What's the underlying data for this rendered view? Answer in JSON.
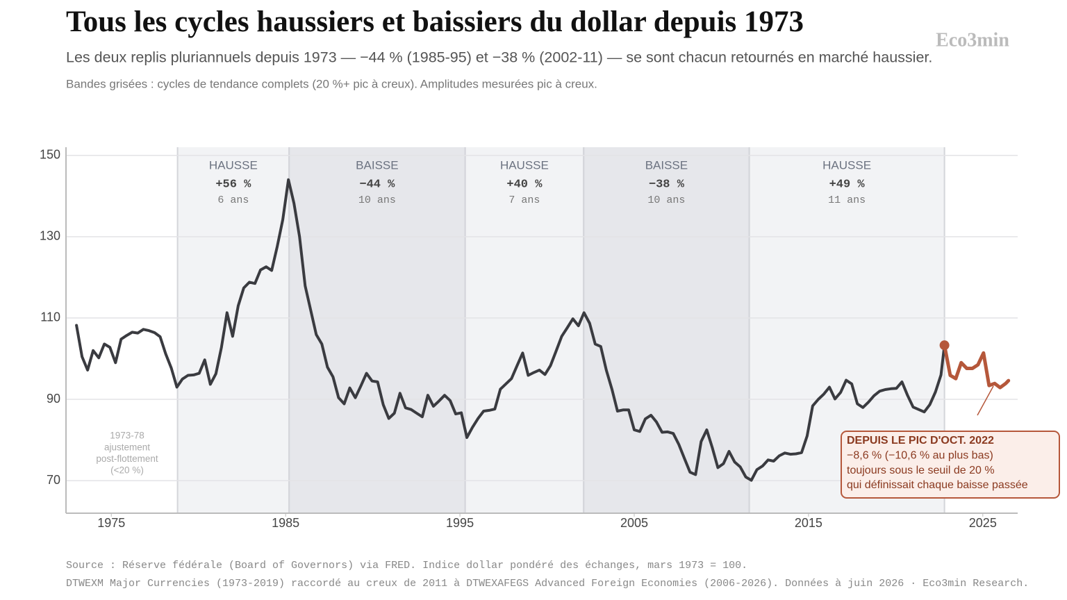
{
  "chart_data": {
    "type": "line",
    "title": "Tous les cycles haussiers et baissiers du dollar depuis 1973",
    "subtitle": "Les deux replis pluriannuels depuis 1973 — −44 % (1985-95) et −38 % (2002-11) — se sont chacun retournés en marché haussier.",
    "note": "Bandes grisées : cycles de tendance complets (20 %+ pic à creux).  Amplitudes mesurées pic à creux.",
    "watermark": "Eco3min",
    "xlim": [
      1972.4,
      2027
    ],
    "ylim": [
      62,
      152
    ],
    "xticks": [
      1975,
      1985,
      1995,
      2005,
      2015,
      2025
    ],
    "yticks": [
      70,
      90,
      110,
      130,
      150
    ],
    "grid": true,
    "bands": [
      {
        "start": 1978.8,
        "end": 1985.2,
        "label": "HAUSSE",
        "change": "+56 %",
        "duration": "6 ans",
        "fill": "#f2f3f5"
      },
      {
        "start": 1985.2,
        "end": 1995.3,
        "label": "BAISSE",
        "change": "−44 %",
        "duration": "10 ans",
        "fill": "#e6e7eb"
      },
      {
        "start": 1995.3,
        "end": 2002.1,
        "label": "HAUSSE",
        "change": "+40 %",
        "duration": "7 ans",
        "fill": "#f2f3f5"
      },
      {
        "start": 2002.1,
        "end": 2011.6,
        "label": "BAISSE",
        "change": "−38 %",
        "duration": "10 ans",
        "fill": "#e6e7eb"
      },
      {
        "start": 2011.6,
        "end": 2022.8,
        "label": "HAUSSE",
        "change": "+49 %",
        "duration": "11 ans",
        "fill": "#f2f3f5"
      }
    ],
    "series": [
      {
        "color": "#3a3b40",
        "x": [
          1973.0,
          1973.32,
          1973.64,
          1973.96,
          1974.28,
          1974.6,
          1974.92,
          1975.24,
          1975.56,
          1975.88,
          1976.2,
          1976.52,
          1976.84,
          1977.16,
          1977.48,
          1977.8,
          1978.12,
          1978.44,
          1978.76,
          1979.08,
          1979.4,
          1979.72,
          1980.04,
          1980.36,
          1980.68,
          1981.0,
          1981.32,
          1981.64,
          1981.96,
          1982.28,
          1982.6,
          1982.92,
          1983.24,
          1983.56,
          1983.88,
          1984.2,
          1984.52,
          1984.84,
          1985.16,
          1985.48,
          1985.8,
          1986.12,
          1986.44,
          1986.76,
          1987.08,
          1987.4,
          1987.72,
          1988.04,
          1988.36,
          1988.68,
          1989.0,
          1989.32,
          1989.64,
          1989.96,
          1990.28,
          1990.6,
          1990.92,
          1991.24,
          1991.56,
          1991.88,
          1992.2,
          1992.52,
          1992.84,
          1993.16,
          1993.48,
          1993.8,
          1994.12,
          1994.44,
          1994.76,
          1995.08,
          1995.4,
          1995.72,
          1996.04,
          1996.36,
          1996.68,
          1997.0,
          1997.32,
          1997.64,
          1997.96,
          1998.28,
          1998.6,
          1998.92,
          1999.24,
          1999.56,
          1999.88,
          2000.2,
          2000.52,
          2000.84,
          2001.16,
          2001.48,
          2001.8,
          2002.12,
          2002.44,
          2002.76,
          2003.08,
          2003.4,
          2003.72,
          2004.04,
          2004.36,
          2004.68,
          2005.0,
          2005.32,
          2005.64,
          2005.96,
          2006.28,
          2006.6,
          2006.92,
          2007.24,
          2007.56,
          2007.88,
          2008.2,
          2008.52,
          2008.84,
          2009.16,
          2009.48,
          2009.8,
          2010.12,
          2010.44,
          2010.76,
          2011.08,
          2011.4,
          2011.72,
          2012.04,
          2012.36,
          2012.68,
          2013.0,
          2013.32,
          2013.64,
          2013.96,
          2014.28,
          2014.6,
          2014.92,
          2015.24,
          2015.56,
          2015.88,
          2016.2,
          2016.52,
          2016.84,
          2017.16,
          2017.48,
          2017.8,
          2018.12,
          2018.44,
          2018.76,
          2019.08,
          2019.4,
          2019.72,
          2020.04,
          2020.36,
          2020.68,
          2021.0,
          2021.32,
          2021.64,
          2021.96,
          2022.28,
          2022.6,
          2022.8
        ],
        "values": [
          108.2,
          100.5,
          97.2,
          102.0,
          100.2,
          103.6,
          102.8,
          99.0,
          104.8,
          105.7,
          106.5,
          106.3,
          107.2,
          106.9,
          106.4,
          105.4,
          101.2,
          97.7,
          93.0,
          95.0,
          95.9,
          96.0,
          96.4,
          99.7,
          93.7,
          96.3,
          102.8,
          111.3,
          105.5,
          113.0,
          117.4,
          118.8,
          118.5,
          121.8,
          122.6,
          121.7,
          127.6,
          134.2,
          144.0,
          138.2,
          130.0,
          117.9,
          111.9,
          105.9,
          103.6,
          97.9,
          95.5,
          90.4,
          88.9,
          92.8,
          90.4,
          93.3,
          96.4,
          94.5,
          94.3,
          88.7,
          85.3,
          86.6,
          91.5,
          87.9,
          87.5,
          86.6,
          85.7,
          91.0,
          88.3,
          89.6,
          91.0,
          89.7,
          86.4,
          86.7,
          80.6,
          83.1,
          85.3,
          87.1,
          87.3,
          87.6,
          92.5,
          93.8,
          95.1,
          98.3,
          101.4,
          95.9,
          96.6,
          97.2,
          96.1,
          98.3,
          101.9,
          105.5,
          107.6,
          109.8,
          108.1,
          111.3,
          108.7,
          103.6,
          103.0,
          97.2,
          92.5,
          87.1,
          87.4,
          87.4,
          82.5,
          82.1,
          85.2,
          86.1,
          84.4,
          81.9,
          82.0,
          81.6,
          78.9,
          75.5,
          72.1,
          71.5,
          79.6,
          82.5,
          78.1,
          73.2,
          74.2,
          77.2,
          74.6,
          73.4,
          70.9,
          70.1,
          72.7,
          73.6,
          75.1,
          74.8,
          76.1,
          76.8,
          76.5,
          76.6,
          76.9,
          81.0,
          88.4,
          90.0,
          91.3,
          93.0,
          90.1,
          91.7,
          94.7,
          93.8,
          88.9,
          88.0,
          89.3,
          90.9,
          92.0,
          92.4,
          92.6,
          92.7,
          94.3,
          91.0,
          88.1,
          87.5,
          86.9,
          88.7,
          91.8,
          96.0,
          103.3
        ]
      },
      {
        "color": "#b5573a",
        "start_marker": true,
        "x": [
          2022.8,
          2023.13,
          2023.45,
          2023.76,
          2024.08,
          2024.4,
          2024.72,
          2025.04,
          2025.36,
          2025.68,
          2025.99,
          2026.31,
          2026.47
        ],
        "values": [
          103.3,
          95.9,
          95.1,
          99.0,
          97.6,
          97.6,
          98.5,
          101.4,
          93.4,
          93.9,
          92.9,
          93.9,
          94.6
        ]
      }
    ],
    "annotations": [
      {
        "lines": [
          "1973-78",
          "ajustement",
          "post-flottement",
          "(<20 %)"
        ]
      },
      {
        "lines": [
          "DEPUIS LE PIC D'OCT. 2022",
          "−8,6 % (−10,6 % au plus bas)",
          "toujours sous le seuil de 20 %",
          "qui définissait chaque baisse passée"
        ]
      }
    ],
    "source": [
      "Source : Réserve fédérale (Board of Governors) via FRED.  Indice dollar pondéré des échanges, mars 1973 = 100.",
      "DTWEXM Major Currencies (1973-2019) raccordé au creux de 2011 à DTWEXAFEGS Advanced Foreign Economies (2006-2026).  Données à juin 2026 · Eco3min Research."
    ]
  }
}
